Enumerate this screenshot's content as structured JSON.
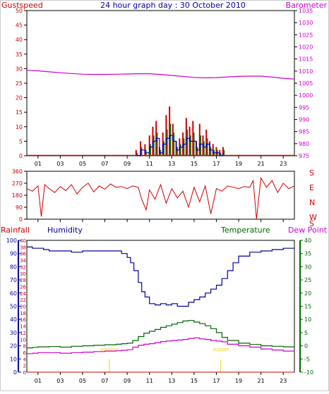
{
  "header": {
    "title": "24 hour graph day : 30 October 2010",
    "left_label": "Gustspeed",
    "right_label": "Barometer"
  },
  "colors": {
    "plot_bg": "#ffffff",
    "frame": "#000000",
    "gust": "#cc0000",
    "wind_avg": "#007700",
    "wind_min": "#0000cc",
    "barometer": "#cc00cc",
    "direction": "#cc0000",
    "humidity": "#000099",
    "temperature": "#006600",
    "dewpoint": "#cc00cc",
    "rainfall": "#cc0000",
    "sun": "#ffcc00",
    "title": "#000099"
  },
  "bottom_labels": {
    "rainfall": "Rainfall",
    "humidity": "Humidity",
    "temperature": "Temperature",
    "dewpoint": "Dew Point",
    "sunrise": "sunrise",
    "sunset": "sunset"
  },
  "x_ticks": [
    "01",
    "03",
    "05",
    "07",
    "09",
    "11",
    "13",
    "15",
    "17",
    "19",
    "21",
    "23"
  ],
  "chart_data": [
    {
      "type": "line",
      "panel": "wind_and_pressure",
      "x_range": [
        0,
        24
      ],
      "y_left": {
        "label": "Gustspeed",
        "range": [
          0,
          50
        ],
        "ticks": [
          "0",
          "5",
          "10",
          "15",
          "20",
          "25",
          "30",
          "35",
          "40",
          "45",
          "50"
        ]
      },
      "y_right": {
        "label": "Barometer",
        "range": [
          975,
          1035
        ],
        "ticks": [
          "975",
          "980",
          "985",
          "990",
          "995",
          "1000",
          "1005",
          "1010",
          "1015",
          "1020",
          "1025",
          "1030",
          "1035"
        ]
      },
      "series": [
        {
          "name": "Barometer",
          "axis": "right",
          "x": [
            0,
            1,
            2,
            3,
            4,
            5,
            6,
            7,
            8,
            9,
            10,
            11,
            12,
            13,
            14,
            15,
            16,
            17,
            18,
            19,
            20,
            21,
            22,
            23,
            24
          ],
          "y": [
            1010.3,
            1010.1,
            1009.7,
            1009.3,
            1009.0,
            1008.7,
            1008.6,
            1008.6,
            1008.7,
            1008.8,
            1008.9,
            1008.9,
            1008.6,
            1008.2,
            1007.8,
            1007.4,
            1007.2,
            1007.3,
            1007.6,
            1007.8,
            1007.9,
            1007.9,
            1007.5,
            1007.0,
            1006.7
          ]
        },
        {
          "axis": "left",
          "role": "gust",
          "x": [
            9.8,
            10.2,
            10.6,
            11.0,
            11.3,
            11.6,
            11.9,
            12.2,
            12.5,
            12.8,
            13.1,
            13.4,
            13.7,
            14.0,
            14.3,
            14.6,
            14.9,
            15.2,
            15.5,
            15.8,
            16.1,
            16.4,
            16.7,
            17.0,
            17.3,
            17.6
          ],
          "y": [
            2,
            5,
            4,
            7,
            10,
            12,
            3,
            8,
            14,
            17,
            11,
            5,
            6,
            8,
            13,
            10,
            12,
            5,
            11,
            7,
            9,
            5,
            4,
            3,
            2,
            3
          ]
        },
        {
          "axis": "left",
          "role": "average",
          "x": [
            9.8,
            10.2,
            10.6,
            11.0,
            11.3,
            11.6,
            11.9,
            12.2,
            12.5,
            12.8,
            13.1,
            13.4,
            13.7,
            14.0,
            14.3,
            14.6,
            14.9,
            15.2,
            15.5,
            15.8,
            16.1,
            16.4,
            16.7,
            17.0,
            17.3,
            17.6
          ],
          "y": [
            1,
            3,
            2,
            4,
            7,
            8,
            2,
            5,
            9,
            11,
            8,
            3,
            4,
            6,
            9,
            7,
            8,
            3,
            7,
            5,
            6,
            3,
            2,
            2,
            1,
            2
          ]
        },
        {
          "axis": "left",
          "role": "minimum",
          "x": [
            9.8,
            10.2,
            10.6,
            11.0,
            11.3,
            11.6,
            11.9,
            12.2,
            12.5,
            12.8,
            13.1,
            13.4,
            13.7,
            14.0,
            14.3,
            14.6,
            14.9,
            15.2,
            15.5,
            15.8,
            16.1,
            16.4,
            16.7,
            17.0,
            17.3,
            17.6
          ],
          "y": [
            0,
            2,
            1,
            3,
            5,
            6,
            1,
            4,
            6,
            7,
            5,
            2,
            3,
            4,
            6,
            5,
            5,
            2,
            4,
            3,
            4,
            2,
            1,
            1,
            0,
            1
          ]
        }
      ]
    },
    {
      "type": "line",
      "panel": "wind_direction",
      "x_range": [
        0,
        24
      ],
      "y_left": {
        "range": [
          0,
          360
        ],
        "ticks": [
          "0",
          "90",
          "180",
          "270",
          "360"
        ]
      },
      "y_right_labels": [
        "S",
        "E",
        "N",
        "W",
        "S"
      ],
      "series": [
        {
          "axis": "left",
          "x": [
            0,
            0.5,
            1,
            1.3,
            1.6,
            2,
            2.5,
            3,
            3.5,
            4,
            4.5,
            5,
            5.5,
            6,
            6.5,
            7,
            7.5,
            8,
            8.5,
            9,
            9.5,
            10,
            10.3,
            10.7,
            11,
            11.5,
            12,
            12.5,
            13,
            13.5,
            14,
            14.5,
            15,
            15.5,
            16,
            16.5,
            17,
            17.5,
            18,
            18.5,
            19,
            19.5,
            20,
            20.3,
            20.6,
            21,
            21.5,
            22,
            22.5,
            23,
            23.5,
            24
          ],
          "y": [
            230,
            210,
            250,
            20,
            260,
            230,
            200,
            245,
            215,
            260,
            190,
            240,
            270,
            205,
            250,
            225,
            265,
            240,
            245,
            230,
            250,
            240,
            150,
            70,
            220,
            150,
            260,
            120,
            230,
            160,
            210,
            90,
            240,
            130,
            250,
            40,
            230,
            210,
            250,
            240,
            230,
            245,
            240,
            290,
            0,
            310,
            240,
            290,
            200,
            270,
            230,
            250
          ]
        }
      ]
    },
    {
      "type": "line",
      "panel": "humidity_temperature",
      "x_range": [
        0,
        24
      ],
      "y_left": {
        "label": "Humidity",
        "range": [
          0,
          100
        ],
        "ticks": [
          "0",
          "10",
          "20",
          "30",
          "40",
          "50",
          "60",
          "70",
          "80",
          "90",
          "100"
        ]
      },
      "y_left_outer": {
        "label": "Rainfall",
        "range": [
          0,
          40
        ],
        "ticks": [
          "0",
          "2",
          "4",
          "6",
          "8",
          "10",
          "12",
          "14",
          "16",
          "18",
          "20",
          "22",
          "24",
          "26",
          "28",
          "30",
          "32",
          "34",
          "36",
          "38",
          "40"
        ]
      },
      "y_right": {
        "label": "Temperature",
        "range": [
          -10,
          40
        ],
        "ticks": [
          "-10",
          "-5",
          "0",
          "5",
          "10",
          "15",
          "20",
          "25",
          "30",
          "35",
          "40"
        ]
      },
      "series": [
        {
          "name": "Humidity",
          "axis": "left",
          "x": [
            0,
            0.5,
            1,
            1.5,
            2,
            3,
            4,
            5,
            6,
            7,
            8,
            8.5,
            9,
            9.3,
            9.6,
            10,
            10.3,
            10.6,
            11,
            11.5,
            12,
            12.5,
            13,
            13.5,
            14,
            14.5,
            15,
            15.5,
            16,
            16.5,
            17,
            17.5,
            18,
            18.5,
            19,
            20,
            21,
            22,
            23,
            24
          ],
          "y": [
            95,
            94,
            94,
            93,
            92,
            92,
            91,
            92,
            92,
            92,
            92,
            90,
            87,
            83,
            77,
            68,
            61,
            57,
            52,
            51,
            52,
            51,
            52,
            50,
            50,
            53,
            55,
            57,
            60,
            63,
            66,
            71,
            77,
            83,
            88,
            91,
            92,
            93,
            94,
            94
          ]
        },
        {
          "name": "Temperature",
          "axis": "right",
          "x": [
            0,
            0.5,
            1,
            2,
            3,
            4,
            5,
            6,
            7,
            8,
            8.5,
            9,
            9.5,
            10,
            10.5,
            11,
            11.5,
            12,
            12.5,
            13,
            13.5,
            14,
            14.5,
            15,
            15.5,
            16,
            16.5,
            17,
            17.5,
            18,
            19,
            20,
            21,
            22,
            23,
            24
          ],
          "y": [
            -0.8,
            -0.6,
            -0.4,
            -0.3,
            -0.5,
            -0.2,
            0.0,
            0.2,
            0.4,
            0.6,
            0.8,
            1.0,
            2.0,
            3.5,
            4.8,
            5.5,
            6.2,
            7.0,
            7.6,
            8.2,
            8.8,
            9.4,
            9.6,
            9.0,
            8.4,
            7.6,
            6.5,
            5.0,
            3.2,
            2.0,
            1.0,
            0.5,
            0.0,
            -0.2,
            -0.4,
            -0.6
          ]
        },
        {
          "name": "Dew Point",
          "axis": "right",
          "x": [
            0,
            0.5,
            1,
            2,
            3,
            4,
            5,
            6,
            7,
            8,
            8.5,
            9,
            9.5,
            10,
            10.5,
            11,
            11.5,
            12,
            12.5,
            13,
            13.5,
            14,
            14.5,
            15,
            15.5,
            16,
            16.5,
            17,
            17.5,
            18,
            19,
            20,
            21,
            22,
            23,
            24
          ],
          "y": [
            -3.0,
            -2.8,
            -2.6,
            -2.6,
            -2.8,
            -2.6,
            -2.4,
            -2.2,
            -2.0,
            -1.9,
            -1.7,
            -1.5,
            -0.5,
            0.2,
            0.6,
            0.8,
            1.2,
            1.6,
            1.8,
            2.0,
            2.2,
            2.4,
            2.8,
            3.0,
            2.6,
            2.4,
            2.0,
            1.8,
            1.5,
            0.6,
            0.0,
            -0.5,
            -1.2,
            -1.6,
            -2.0,
            -2.4
          ]
        },
        {
          "axis": "left_outer",
          "role": "rainfall",
          "x": [
            0,
            24
          ],
          "y": [
            0,
            0
          ]
        }
      ],
      "sunrise_hour": 7.4,
      "sunset_hour": 17.4
    }
  ]
}
